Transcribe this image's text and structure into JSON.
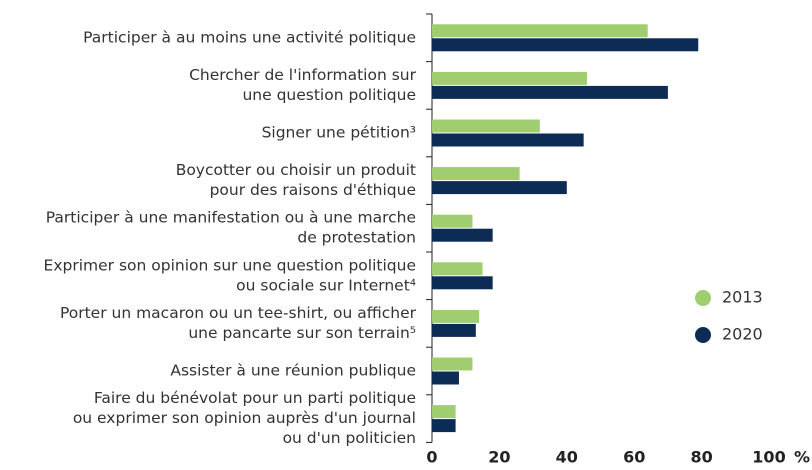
{
  "chart_data": {
    "type": "hbar",
    "categories": [
      [
        "Participer à au moins une activité politique"
      ],
      [
        "Chercher de l'information sur",
        "une question politique"
      ],
      [
        "Signer une pétition³"
      ],
      [
        "Boycotter ou choisir un produit",
        "pour des raisons d'éthique"
      ],
      [
        "Participer à une manifestation ou à une marche",
        "de protestation"
      ],
      [
        "Exprimer son opinion sur une question politique",
        "ou sociale sur Internet⁴"
      ],
      [
        "Porter un macaron ou un tee-shirt, ou afficher",
        "une pancarte sur son terrain⁵"
      ],
      [
        "Assister à une réunion publique"
      ],
      [
        "Faire du bénévolat pour un parti politique",
        "ou exprimer son opinion auprès d'un journal",
        "ou d'un politicien"
      ]
    ],
    "series": [
      {
        "name": "2013",
        "color": "#9fcd6f",
        "values": [
          64,
          46,
          32,
          26,
          12,
          15,
          14,
          12,
          7
        ]
      },
      {
        "name": "2020",
        "color": "#0c2b55",
        "values": [
          79,
          70,
          45,
          40,
          18,
          18,
          13,
          8,
          7
        ]
      }
    ],
    "xlim": [
      0,
      100
    ],
    "xticks": [
      0,
      20,
      40,
      60,
      80,
      100
    ],
    "xlabel": "%",
    "legend": "right"
  }
}
